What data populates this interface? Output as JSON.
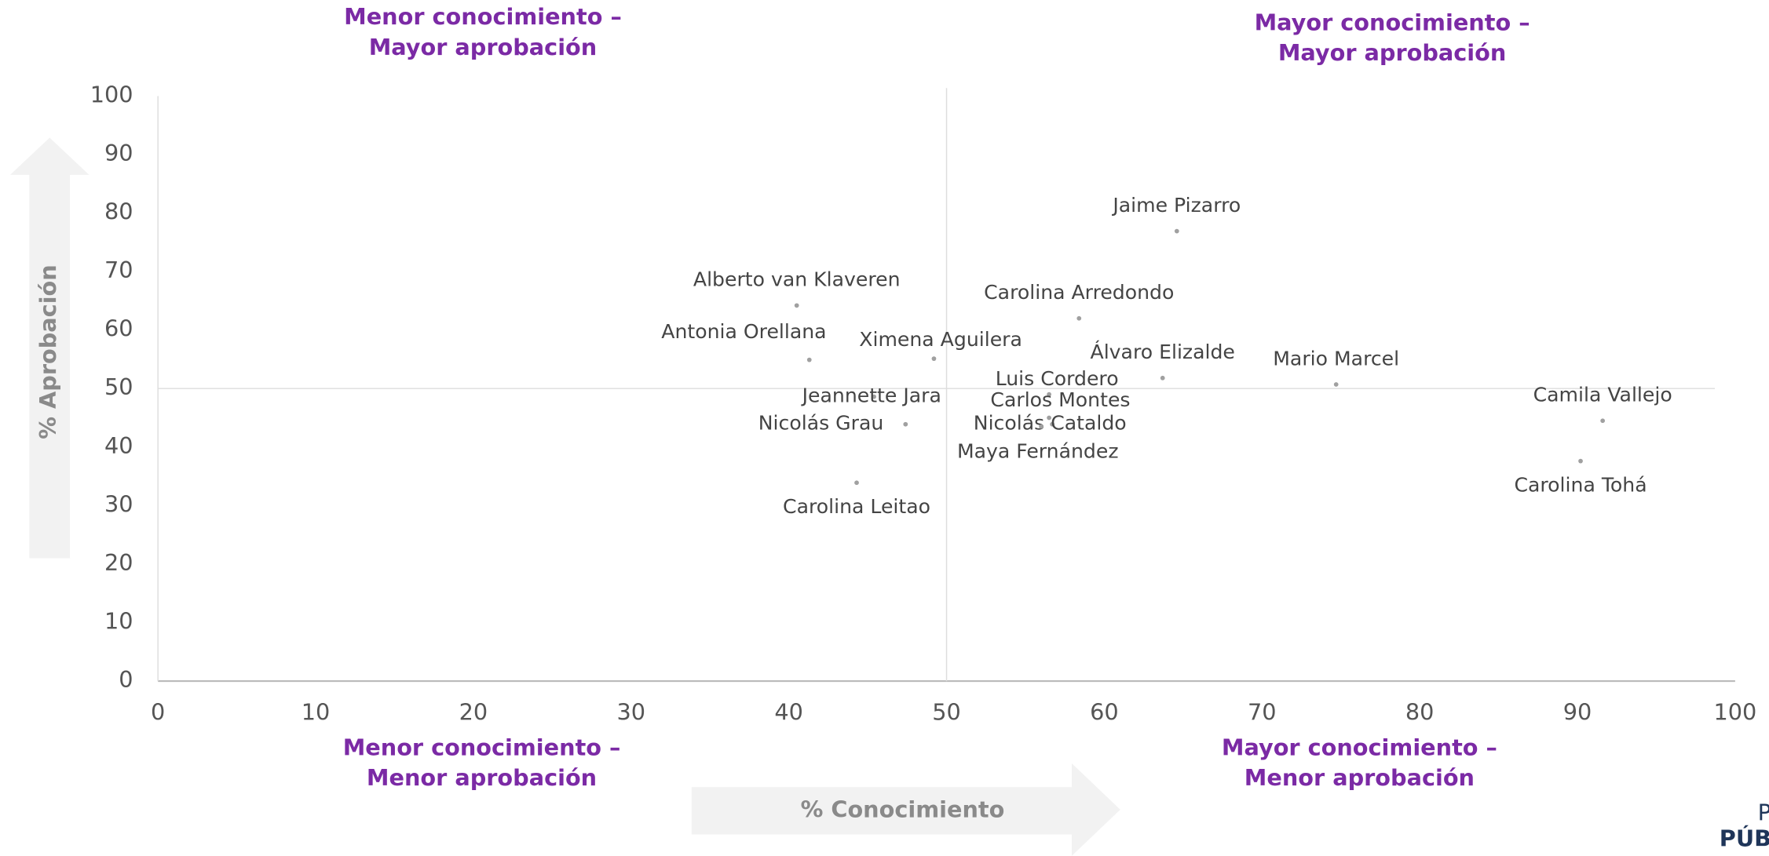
{
  "chart_data": {
    "type": "scatter",
    "x_label": "% Conocimiento",
    "y_label": "% Aprobación",
    "quadrant_labels": [
      "Menor conocimiento –",
      "Mayor aprobación",
      "Mayor conocimiento –",
      "Mayor aprobación",
      "Menor conocimiento –",
      "Menor aprobación",
      "Mayor conocimiento –",
      "Menor aprobación"
    ],
    "logo": [
      "P",
      "PÚB"
    ],
    "labels": [
      "Jaime Pizarro",
      "Alberto van Klaveren",
      "Carolina Arredondo",
      "Antonia Orellana",
      "Ximena Aguilera",
      "Álvaro Elizalde",
      "Mario Marcel",
      "Luis Cordero",
      "Jeannette Jara",
      "Carlos Montes",
      "Nicolás Grau",
      "Nicolás Cataldo",
      "Maya Fernández",
      "Camila Vallejo",
      "Carolina Tohá",
      "Carolina Leitao"
    ],
    "x": [
      64.6,
      40.5,
      58.4,
      41.3,
      49.2,
      63.7,
      74.7,
      56.5,
      45.4,
      56.5,
      47.4,
      56.7,
      56.0,
      91.6,
      90.2,
      44.3
    ],
    "y": [
      76.9,
      64.2,
      62.0,
      54.9,
      55.1,
      51.8,
      50.7,
      49.0,
      48.6,
      45.0,
      43.9,
      43.9,
      43.5,
      44.5,
      37.6,
      33.9
    ],
    "color": "#a0a0a0",
    "xref": 50,
    "yref": 50,
    "xlim": [
      0,
      100
    ],
    "ylim": [
      0,
      100
    ],
    "xticks": [
      0,
      10,
      20,
      30,
      40,
      50,
      60,
      70,
      80,
      90,
      100
    ],
    "yticks": [
      0,
      10,
      20,
      30,
      40,
      50,
      60,
      70,
      80,
      90,
      100
    ]
  }
}
